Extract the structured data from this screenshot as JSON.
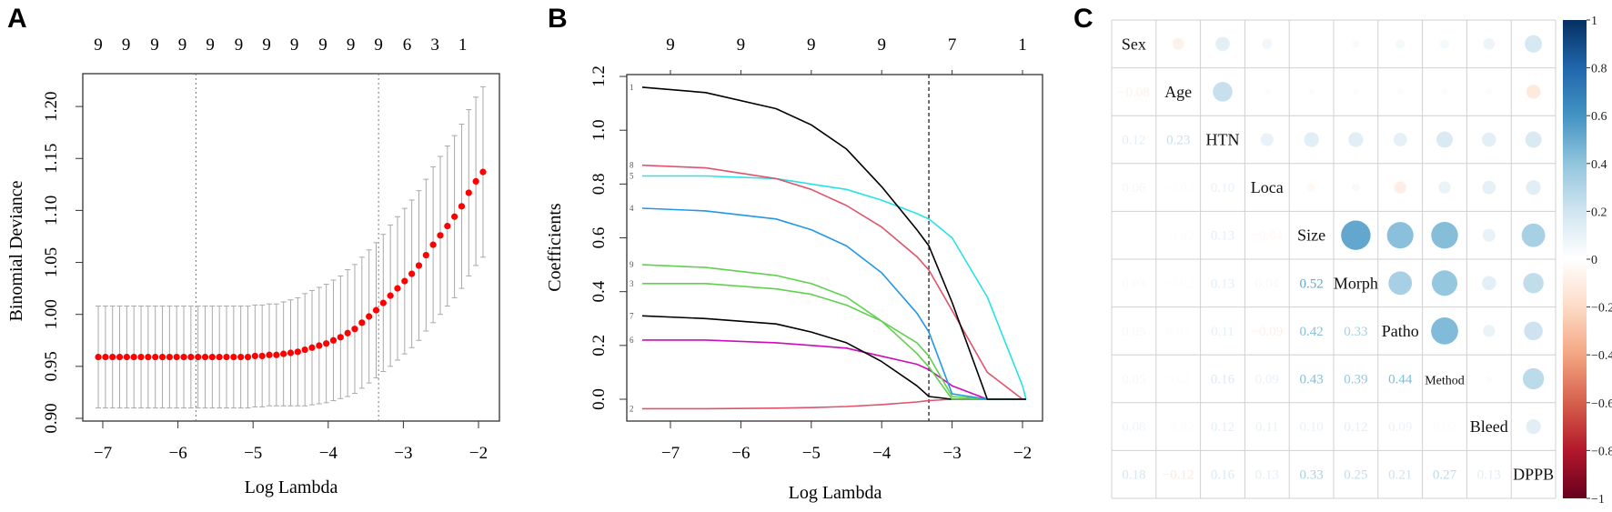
{
  "panels": {
    "a": "A",
    "b": "B",
    "c": "C"
  },
  "chart_data": [
    {
      "type": "scatter",
      "panel": "A",
      "xlabel": "Log Lambda",
      "ylabel": "Binomial Deviance",
      "xlim": [
        -7.2,
        -1.7
      ],
      "ylim": [
        0.8975,
        1.232
      ],
      "xticks": [
        -7,
        -6,
        -5,
        -4,
        -3,
        -2
      ],
      "yticks": [
        0.9,
        0.95,
        1.0,
        1.05,
        1.1,
        1.15,
        1.2
      ],
      "ytick_labels": [
        "0.90",
        "0.95",
        "1.00",
        "1.05",
        "1.10",
        "1.15",
        "1.20"
      ],
      "top_axis_labels": [
        "9",
        "9",
        "9",
        "9",
        "9",
        "9",
        "9",
        "9",
        "9",
        "9",
        "9",
        "6",
        "3",
        "1"
      ],
      "top_axis_x": [
        -7.06,
        -6.69,
        -6.31,
        -5.94,
        -5.57,
        -5.19,
        -4.82,
        -4.45,
        -4.07,
        -3.7,
        -3.33,
        -2.95,
        -2.58,
        -2.21
      ],
      "vlines": [
        -5.76,
        -3.33
      ],
      "x_start": -7.06,
      "x_end": -1.94,
      "mean": [
        0.959,
        0.959,
        0.959,
        0.959,
        0.959,
        0.959,
        0.959,
        0.959,
        0.959,
        0.959,
        0.959,
        0.959,
        0.959,
        0.959,
        0.959,
        0.959,
        0.959,
        0.959,
        0.959,
        0.959,
        0.959,
        0.959,
        0.96,
        0.96,
        0.961,
        0.961,
        0.962,
        0.963,
        0.964,
        0.966,
        0.968,
        0.97,
        0.972,
        0.975,
        0.978,
        0.982,
        0.986,
        0.992,
        0.998,
        1.004,
        1.011,
        1.018,
        1.025,
        1.032,
        1.039,
        1.047,
        1.057,
        1.067,
        1.076,
        1.085,
        1.094,
        1.104,
        1.117,
        1.128,
        1.137
      ],
      "se": [
        0.049,
        0.049,
        0.049,
        0.049,
        0.049,
        0.049,
        0.049,
        0.049,
        0.049,
        0.049,
        0.049,
        0.049,
        0.049,
        0.049,
        0.049,
        0.049,
        0.049,
        0.049,
        0.049,
        0.049,
        0.049,
        0.049,
        0.049,
        0.049,
        0.049,
        0.049,
        0.05,
        0.051,
        0.052,
        0.054,
        0.055,
        0.056,
        0.057,
        0.058,
        0.059,
        0.061,
        0.062,
        0.063,
        0.064,
        0.065,
        0.066,
        0.068,
        0.069,
        0.07,
        0.071,
        0.072,
        0.073,
        0.075,
        0.076,
        0.077,
        0.078,
        0.079,
        0.08,
        0.081,
        0.082
      ],
      "point_color": "#ff0000",
      "bar_color": "#a9a9a9"
    },
    {
      "type": "line",
      "panel": "B",
      "xlabel": "Log Lambda",
      "ylabel": "Coefficients",
      "xlim": [
        -7.62,
        -1.7
      ],
      "ylim": [
        -0.1,
        1.207
      ],
      "xticks": [
        -7,
        -6,
        -5,
        -4,
        -3,
        -2
      ],
      "yticks": [
        0.0,
        0.2,
        0.4,
        0.6,
        0.8,
        1.0,
        1.2
      ],
      "ytick_labels": [
        "0.0",
        "0.2",
        "0.4",
        "0.6",
        "0.8",
        "1.0",
        "1.2"
      ],
      "top_axis_labels": [
        "9",
        "9",
        "9",
        "9",
        "7",
        "1"
      ],
      "top_axis_x": [
        -7,
        -6,
        -5,
        -4,
        -3,
        -2
      ],
      "vline": -3.33,
      "x": [
        -7.4,
        -6.5,
        -5.5,
        -5,
        -4.5,
        -4,
        -3.5,
        -3.33,
        -3,
        -2.5,
        -2,
        -1.95
      ],
      "series": [
        {
          "label": "1",
          "color": "#000000",
          "values": [
            1.16,
            1.14,
            1.08,
            1.02,
            0.93,
            0.79,
            0.63,
            0.57,
            0.36,
            0,
            0,
            0
          ]
        },
        {
          "label": "8",
          "color": "#DF536B",
          "values": [
            0.87,
            0.86,
            0.82,
            0.78,
            0.72,
            0.64,
            0.53,
            0.48,
            0.33,
            0.1,
            0,
            0
          ]
        },
        {
          "label": "5",
          "color": "#28E2E5",
          "values": [
            0.83,
            0.83,
            0.82,
            0.8,
            0.78,
            0.74,
            0.69,
            0.67,
            0.6,
            0.38,
            0.05,
            0
          ]
        },
        {
          "label": "4",
          "color": "#2297E6",
          "values": [
            0.71,
            0.7,
            0.67,
            0.63,
            0.57,
            0.47,
            0.32,
            0.25,
            0.02,
            0,
            0,
            0
          ]
        },
        {
          "label": "9",
          "color": "#61D04F",
          "values": [
            0.5,
            0.49,
            0.46,
            0.43,
            0.38,
            0.29,
            0.17,
            0.12,
            0,
            0,
            0,
            0
          ]
        },
        {
          "label": "3",
          "color": "#61D04F",
          "values": [
            0.43,
            0.43,
            0.41,
            0.39,
            0.35,
            0.29,
            0.21,
            0.16,
            0.01,
            0,
            0,
            0
          ]
        },
        {
          "label": "7",
          "color": "#000000",
          "values": [
            0.31,
            0.3,
            0.28,
            0.25,
            0.21,
            0.14,
            0.05,
            0.01,
            0,
            0,
            0,
            0
          ]
        },
        {
          "label": "6",
          "color": "#CD0BBC",
          "values": [
            0.22,
            0.22,
            0.21,
            0.2,
            0.19,
            0.16,
            0.13,
            0.11,
            0.05,
            0,
            0,
            0
          ]
        },
        {
          "label": "2",
          "color": "#DF536B",
          "values": [
            -0.035,
            -0.035,
            -0.033,
            -0.031,
            -0.027,
            -0.02,
            -0.01,
            -0.005,
            0,
            0,
            0,
            0
          ]
        }
      ]
    },
    {
      "type": "heatmap",
      "panel": "C",
      "variables": [
        "Sex",
        "Age",
        "HTN",
        "Loca",
        "Size",
        "Morph",
        "Patho",
        "Method",
        "Bleed",
        "DPPB"
      ],
      "lower_triangle": [
        [],
        [
          -0.08
        ],
        [
          0.12,
          0.23
        ],
        [
          0.06,
          -0.02,
          0.1
        ],
        [
          -0.0,
          -0.02,
          0.13,
          -0.04
        ],
        [
          0.03,
          -0.02,
          0.13,
          0.04,
          0.52
        ],
        [
          0.05,
          0.02,
          0.11,
          -0.09,
          0.42,
          0.33
        ],
        [
          0.05,
          0.02,
          0.16,
          0.09,
          0.43,
          0.39,
          0.44
        ],
        [
          0.08,
          -0.02,
          0.12,
          0.11,
          0.1,
          0.12,
          0.09,
          0.02
        ],
        [
          0.18,
          -0.12,
          0.16,
          0.13,
          0.33,
          0.25,
          0.21,
          0.27,
          0.13
        ]
      ],
      "upper": "circles",
      "lower": "numbers",
      "colorbar_ticks": [
        1,
        0.8,
        0.6,
        0.4,
        0.2,
        0,
        -0.2,
        -0.4,
        -0.6,
        -0.8,
        -1
      ],
      "colorbar_labels": [
        "1",
        "0.8",
        "0.6",
        "0.4",
        "0.2",
        "0",
        "−0.2",
        "−0.4",
        "−0.6",
        "−0.8",
        "−1"
      ],
      "colorbar_placement": "right",
      "colormap": [
        "#67001F",
        "#B2182B",
        "#D6604D",
        "#F4A582",
        "#FDDBC7",
        "#FFFFFF",
        "#D1E5F0",
        "#92C5DE",
        "#4393C3",
        "#2166AC",
        "#053061"
      ]
    }
  ]
}
